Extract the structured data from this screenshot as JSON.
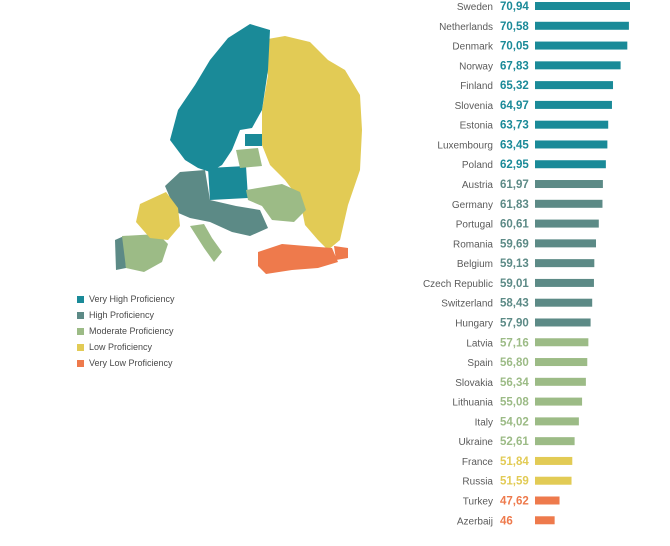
{
  "legend": {
    "items": [
      {
        "label": "Very High Proficiency",
        "color": "#1a8a98"
      },
      {
        "label": "High Proficiency",
        "color": "#5c8a86"
      },
      {
        "label": "Moderate Proficiency",
        "color": "#9cbb86"
      },
      {
        "label": "Low Proficiency",
        "color": "#e2cb55"
      },
      {
        "label": "Very Low Proficiency",
        "color": "#ee7a4c"
      }
    ]
  },
  "chart_data": {
    "type": "bar",
    "orientation": "horizontal",
    "categories": [
      "Sweden",
      "Netherlands",
      "Denmark",
      "Norway",
      "Finland",
      "Slovenia",
      "Estonia",
      "Luxembourg",
      "Poland",
      "Austria",
      "Germany",
      "Portugal",
      "Romania",
      "Belgium",
      "Czech Republic",
      "Switzerland",
      "Hungary",
      "Latvia",
      "Spain",
      "Slovakia",
      "Lithuania",
      "Italy",
      "Ukraine",
      "France",
      "Russia",
      "Turkey",
      "Azerbaij"
    ],
    "values": [
      70.94,
      70.58,
      70.05,
      67.83,
      65.32,
      64.97,
      63.73,
      63.45,
      62.95,
      61.97,
      61.83,
      60.61,
      59.69,
      59.13,
      59.01,
      58.43,
      57.9,
      57.16,
      56.8,
      56.34,
      55.08,
      54.02,
      52.61,
      51.84,
      51.59,
      47.62,
      46
    ],
    "value_labels": [
      "70,94",
      "70,58",
      "70,05",
      "67,83",
      "65,32",
      "64,97",
      "63,73",
      "63,45",
      "62,95",
      "61,97",
      "61,83",
      "60,61",
      "59,69",
      "59,13",
      "59,01",
      "58,43",
      "57,90",
      "57,16",
      "56,80",
      "56,34",
      "55,08",
      "54,02",
      "52,61",
      "51,84",
      "51,59",
      "47,62",
      "46"
    ],
    "levels": [
      "Very High Proficiency",
      "Very High Proficiency",
      "Very High Proficiency",
      "Very High Proficiency",
      "Very High Proficiency",
      "Very High Proficiency",
      "Very High Proficiency",
      "Very High Proficiency",
      "Very High Proficiency",
      "High Proficiency",
      "High Proficiency",
      "High Proficiency",
      "High Proficiency",
      "High Proficiency",
      "High Proficiency",
      "High Proficiency",
      "High Proficiency",
      "Moderate Proficiency",
      "Moderate Proficiency",
      "Moderate Proficiency",
      "Moderate Proficiency",
      "Moderate Proficiency",
      "Moderate Proficiency",
      "Low Proficiency",
      "Low Proficiency",
      "Very Low Proficiency",
      "Very Low Proficiency"
    ],
    "grid": false,
    "legend_placement": "left"
  }
}
